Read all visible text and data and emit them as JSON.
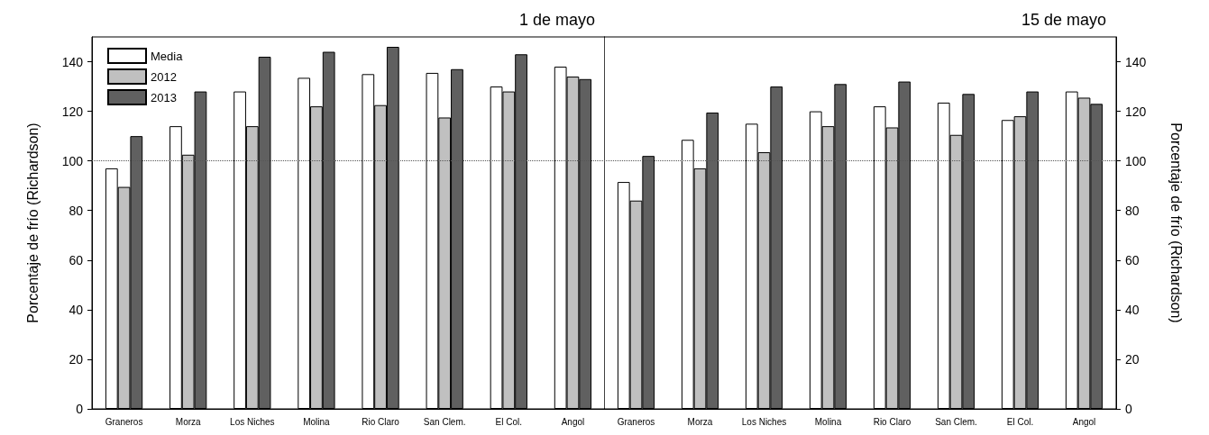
{
  "chart_data": [
    {
      "type": "bar",
      "title": "1 de mayo",
      "ylabel": "Porcentaje de frío (Richardson)",
      "categories": [
        "Graneros",
        "Morza",
        "Los Niches",
        "Molina",
        "Rio Claro",
        "San Clem.",
        "El Col.",
        "Angol"
      ],
      "series": [
        {
          "name": "Media",
          "color": "#ffffff",
          "values": [
            97,
            114,
            128,
            133.5,
            135,
            135.5,
            130,
            138
          ]
        },
        {
          "name": "2012",
          "color": "#c0c0c0",
          "values": [
            89.5,
            102.5,
            114,
            122,
            122.5,
            117.5,
            128,
            134
          ]
        },
        {
          "name": "2013",
          "color": "#606060",
          "values": [
            110,
            128,
            142,
            144,
            146,
            137,
            143,
            133
          ]
        }
      ],
      "ylim": [
        0,
        150
      ],
      "yticks": [
        0,
        20,
        40,
        60,
        80,
        100,
        120,
        140
      ],
      "ref_lines": [
        {
          "axis": "y",
          "value": 100,
          "line_style": "dotted"
        }
      ],
      "legend": "top left",
      "grid": false
    },
    {
      "type": "bar",
      "title": "15 de mayo",
      "ylabel": "Porcentaje de frío (Richardson)",
      "categories": [
        "Graneros",
        "Morza",
        "Los Niches",
        "Molina",
        "Rio Claro",
        "San Clem.",
        "El Col.",
        "Angol"
      ],
      "series": [
        {
          "color": "#ffffff",
          "values": [
            91.5,
            108.5,
            115,
            120,
            122,
            123.5,
            116.5,
            128
          ]
        },
        {
          "color": "#c0c0c0",
          "values": [
            84,
            97,
            103.5,
            114,
            113.5,
            110.5,
            118,
            125.5
          ]
        },
        {
          "color": "#606060",
          "values": [
            102,
            119.5,
            130,
            131,
            132,
            127,
            128,
            123
          ]
        }
      ],
      "ylim": [
        0,
        150
      ],
      "yticks": [
        0,
        20,
        40,
        60,
        80,
        100,
        120,
        140
      ],
      "ref_lines": [
        {
          "axis": "y",
          "value": 100,
          "line_style": "dotted"
        }
      ],
      "grid": false
    }
  ]
}
